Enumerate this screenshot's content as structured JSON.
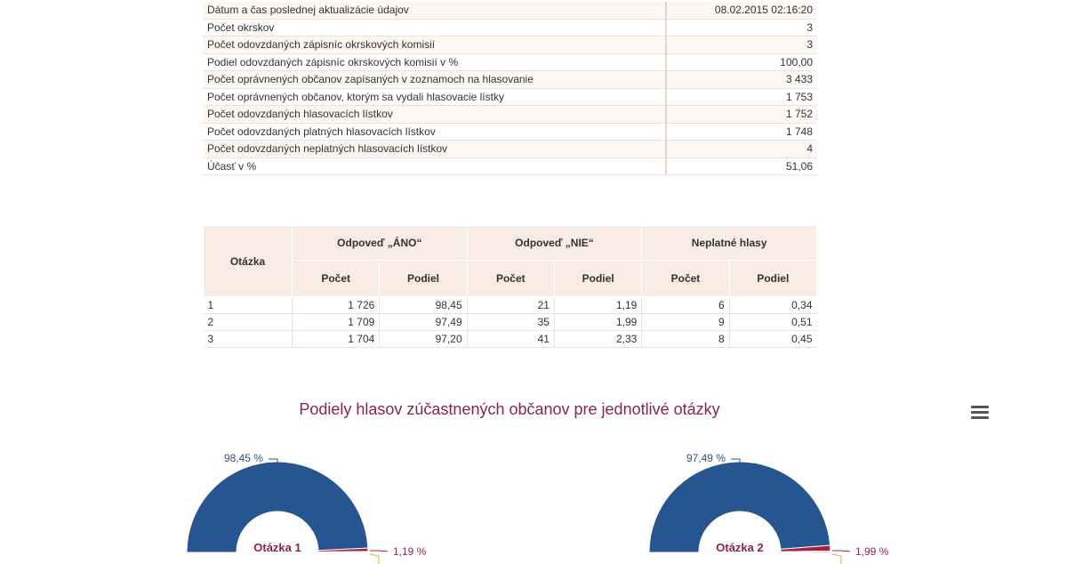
{
  "summary": {
    "rows": [
      {
        "label": "Dátum a čas poslednej aktualizácie údajov",
        "value": "08.02.2015 02:16:20"
      },
      {
        "label": "Počet okrskov",
        "value": "3"
      },
      {
        "label": "Počet odovzdaných zápisníc okrskových komisií",
        "value": "3"
      },
      {
        "label": "Podiel odovzdaných zápisníc okrskových komisií v %",
        "value": "100,00"
      },
      {
        "label": "Počet oprávnených občanov zapísaných v zoznamoch na hlasovanie",
        "value": "3 433"
      },
      {
        "label": "Počet oprávnených občanov, ktorým sa vydali hlasovacie lístky",
        "value": "1 753"
      },
      {
        "label": "Počet odovzdaných hlasovacích lístkov",
        "value": "1 752"
      },
      {
        "label": "Počet odovzdaných platných hlasovacích lístkov",
        "value": "1 748"
      },
      {
        "label": "Počet odovzdaných neplatných hlasovacích lístkov",
        "value": "4"
      },
      {
        "label": "Účasť v %",
        "value": "51,06"
      }
    ]
  },
  "results": {
    "headers": {
      "question": "Otázka",
      "yes": "Odpoveď „ÁNO“",
      "no": "Odpoveď „NIE“",
      "invalid": "Neplatné hlasy",
      "count": "Počet",
      "share": "Podiel"
    },
    "rows": [
      {
        "q": "1",
        "yes_count": "1 726",
        "yes_share": "98,45",
        "no_count": "21",
        "no_share": "1,19",
        "inv_count": "6",
        "inv_share": "0,34"
      },
      {
        "q": "2",
        "yes_count": "1 709",
        "yes_share": "97,49",
        "no_count": "35",
        "no_share": "1,99",
        "inv_count": "9",
        "inv_share": "0,51"
      },
      {
        "q": "3",
        "yes_count": "1 704",
        "yes_share": "97,20",
        "no_count": "41",
        "no_share": "2,33",
        "inv_count": "8",
        "inv_share": "0,45"
      }
    ]
  },
  "chart": {
    "title": "Podiely hlasov zúčastnených občanov pre jednotlivé otázky",
    "menu_icon": "hamburger-menu-icon",
    "colors": {
      "yes": "#27558f",
      "no": "#a3204e",
      "invalid": "#f0a53a",
      "center_text": "#8b2252",
      "label_yes": "#27558f"
    }
  },
  "chart_data": [
    {
      "type": "pie",
      "center_label": "Otázka 1",
      "slices": [
        {
          "value": 98.45,
          "label": "98,45 %"
        },
        {
          "value": 1.19,
          "label": "1,19 %"
        },
        {
          "value": 0.34,
          "label": ""
        }
      ]
    },
    {
      "type": "pie",
      "center_label": "Otázka 2",
      "slices": [
        {
          "value": 97.49,
          "label": "97,49 %"
        },
        {
          "value": 1.99,
          "label": "1,99 %"
        },
        {
          "value": 0.51,
          "label": ""
        }
      ]
    }
  ]
}
